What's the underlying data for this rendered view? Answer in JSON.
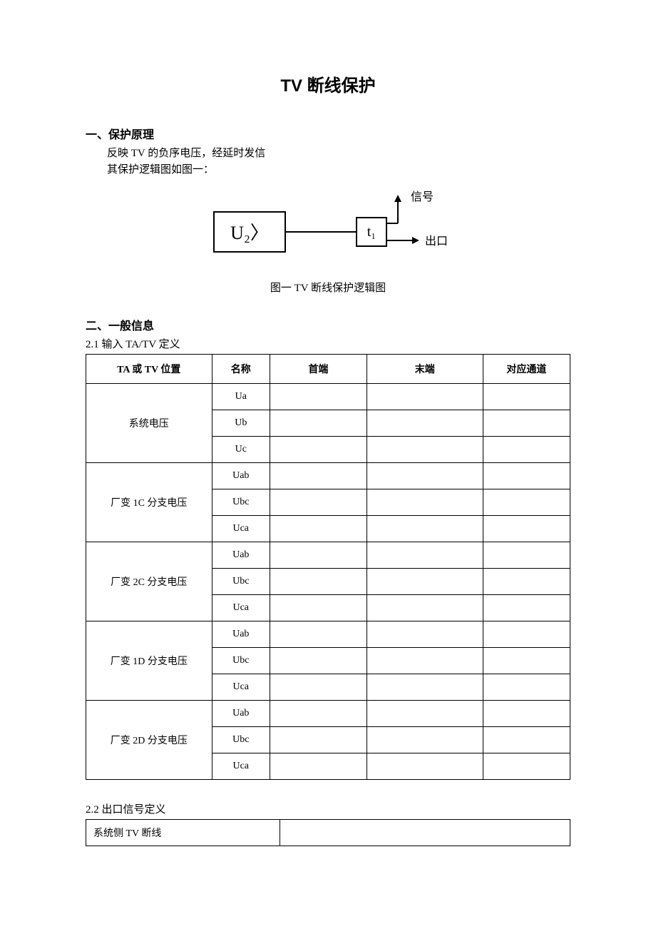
{
  "title": "TV 断线保护",
  "section1": {
    "heading": "一、保护原理",
    "line1": "反映 TV 的负序电压，经延时发信",
    "line2": "其保护逻辑图如图一："
  },
  "diagram": {
    "box1": "U₂〉",
    "box2": "t₁",
    "out_top": "信号",
    "out_right": "出口",
    "caption": "图一  TV 断线保护逻辑图",
    "box_stroke": "#000000",
    "line_stroke": "#000000",
    "box1_fontsize": 26,
    "box2_fontsize": 20,
    "label_fontsize": 16
  },
  "section2": {
    "heading": "二、一般信息",
    "sub21": "2.1  输入 TA/TV 定义",
    "sub22": "2.2  出口信号定义"
  },
  "table1": {
    "headers": [
      "TA 或 TV 位置",
      "名称",
      "首端",
      "末端",
      "对应通道"
    ],
    "groups": [
      {
        "pos": "系统电压",
        "names": [
          "Ua",
          "Ub",
          "Uc"
        ]
      },
      {
        "pos": "厂变 1C 分支电压",
        "names": [
          "Uab",
          "Ubc",
          "Uca"
        ]
      },
      {
        "pos": "厂变 2C 分支电压",
        "names": [
          "Uab",
          "Ubc",
          "Uca"
        ]
      },
      {
        "pos": "厂变 1D 分支电压",
        "names": [
          "Uab",
          "Ubc",
          "Uca"
        ]
      },
      {
        "pos": "厂变 2D 分支电压",
        "names": [
          "Uab",
          "Ubc",
          "Uca"
        ]
      }
    ]
  },
  "table2": {
    "row1_left": "系统侧 TV 断线",
    "row1_right": ""
  }
}
